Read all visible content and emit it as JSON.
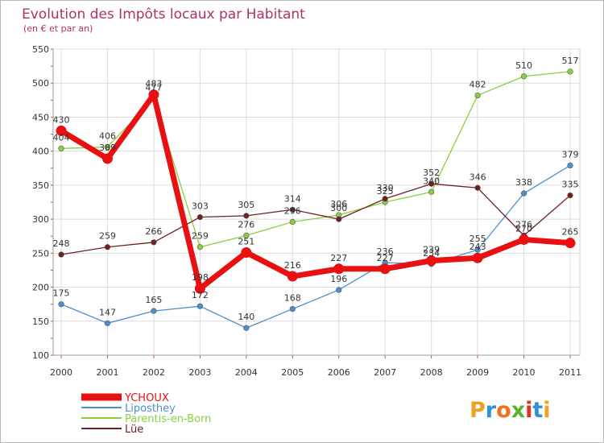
{
  "chart_data": {
    "type": "line",
    "title": "Evolution des Impôts locaux par Habitant",
    "subtitle": "(en € et par an)",
    "xlabel": "",
    "ylabel": "",
    "x": [
      "2000",
      "2001",
      "2002",
      "2003",
      "2004",
      "2005",
      "2006",
      "2007",
      "2008",
      "2009",
      "2010",
      "2011"
    ],
    "ylim": [
      100,
      550
    ],
    "yticks": [
      100,
      150,
      200,
      250,
      300,
      350,
      400,
      450,
      500,
      550
    ],
    "grid": true,
    "legend_position": "bottom-left",
    "series": [
      {
        "name": "Liposthey",
        "color": "#4a8fd0",
        "values": [
          175,
          147,
          165,
          172,
          140,
          168,
          196,
          236,
          234,
          255,
          338,
          379
        ]
      },
      {
        "name": "Parentis-en-Born",
        "color": "#88d040",
        "values": [
          404,
          406,
          477,
          259,
          276,
          296,
          306,
          325,
          340,
          482,
          510,
          517
        ]
      },
      {
        "name": "Lüe",
        "color": "#702020",
        "values": [
          248,
          259,
          266,
          303,
          305,
          314,
          300,
          330,
          352,
          346,
          276,
          335
        ]
      },
      {
        "name": "YCHOUX",
        "color": "#e81010",
        "values": [
          430,
          389,
          483,
          198,
          251,
          216,
          227,
          227,
          239,
          243,
          270,
          265
        ]
      }
    ]
  },
  "legend": {
    "entries": [
      {
        "name": "YCHOUX",
        "color": "#e81010"
      },
      {
        "name": "Liposthey",
        "color": "#4a8fd0"
      },
      {
        "name": "Parentis-en-Born",
        "color": "#88d040"
      },
      {
        "name": "Lüe",
        "color": "#702020"
      }
    ]
  },
  "logo": {
    "text": "Proxiti",
    "letters": [
      "P",
      "r",
      "o",
      "x",
      "i",
      "t",
      "i"
    ],
    "colors": [
      "#f0a020",
      "#3090d8",
      "#f07020",
      "#60b030",
      "#e03020",
      "#3090d8",
      "#f0a020"
    ]
  }
}
